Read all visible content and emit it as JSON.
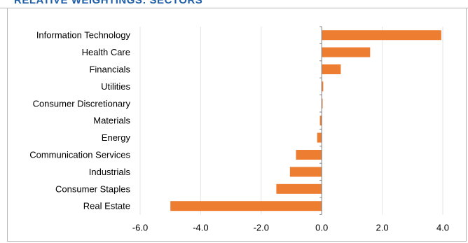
{
  "header": {
    "title": "RELATIVE WEIGHTINGS: SECTORS"
  },
  "chart_data": {
    "type": "bar",
    "orientation": "horizontal",
    "title": "RELATIVE WEIGHTINGS: SECTORS",
    "categories": [
      "Information Technology",
      "Health Care",
      "Financials",
      "Utilities",
      "Consumer Discretionary",
      "Materials",
      "Energy",
      "Communication Services",
      "Industrials",
      "Consumer Staples",
      "Real Estate"
    ],
    "values": [
      3.95,
      1.6,
      0.63,
      0.05,
      0.03,
      -0.06,
      -0.15,
      -0.85,
      -1.05,
      -1.5,
      -5.0
    ],
    "xlim": [
      -6.0,
      4.0
    ],
    "xticks": [
      "-6.0",
      "-4.0",
      "-2.0",
      "0.0",
      "2.0",
      "4.0"
    ],
    "xtick_values": [
      -6,
      -4,
      -2,
      0,
      2,
      4
    ],
    "grid": "vertical",
    "bar_color": "#ed7d31",
    "legend": "none",
    "xlabel": "",
    "ylabel": ""
  }
}
